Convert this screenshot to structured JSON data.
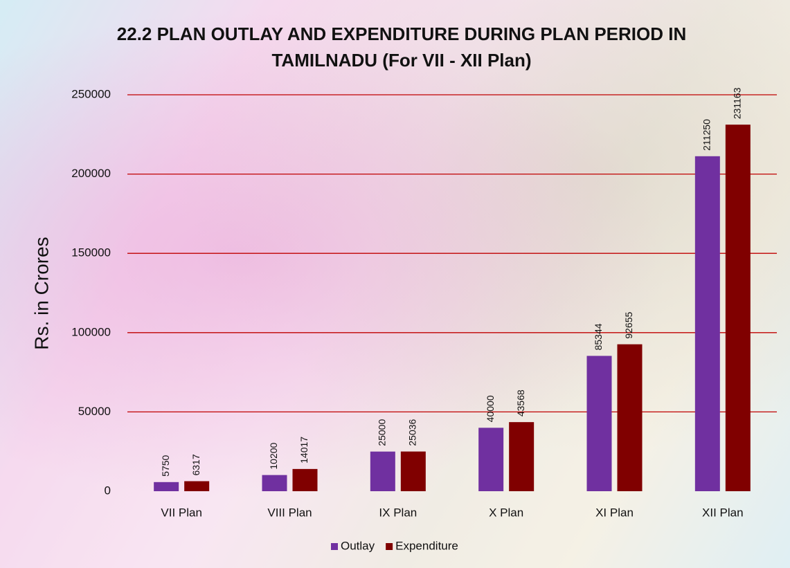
{
  "chart_data": {
    "type": "bar",
    "title": "22.2 PLAN OUTLAY AND EXPENDITURE DURING PLAN PERIOD IN TAMILNADU (For VII - XII Plan)",
    "y_label": "Rs. in Crores",
    "categories": [
      "VII Plan",
      "VIII Plan",
      "IX Plan",
      "X Plan",
      "XI Plan",
      "XII Plan"
    ],
    "series": [
      {
        "name": "Outlay",
        "color": "#7030a0",
        "values": [
          5750,
          10200,
          25000,
          40000,
          85344,
          211250
        ]
      },
      {
        "name": "Expenditure",
        "color": "#800000",
        "values": [
          6317,
          14017,
          25036,
          43568,
          92655,
          231163
        ]
      }
    ],
    "ylim": [
      0,
      250000
    ],
    "yticks": [
      0,
      50000,
      100000,
      150000,
      200000,
      250000
    ],
    "grid": true,
    "grid_color": "#c00000",
    "legend": "bottom"
  }
}
